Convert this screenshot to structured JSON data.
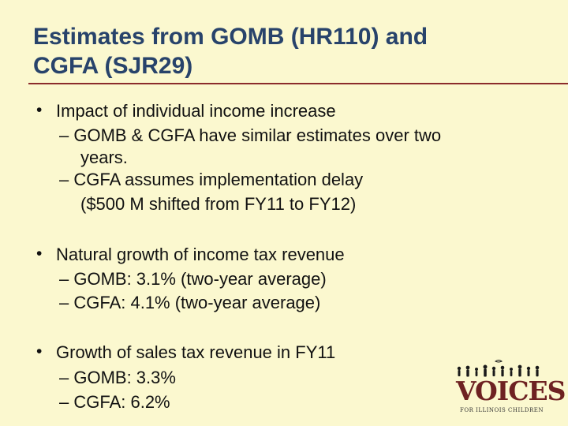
{
  "slide": {
    "title_line1": "Estimates from GOMB (HR110) and",
    "title_line2": "CGFA (SJR29)",
    "bullets": [
      {
        "text": "Impact of individual income increase",
        "subs": [
          "– GOMB & CGFA have similar estimates over two",
          "years.",
          "– CGFA assumes implementation delay",
          "($500 M shifted from FY11 to FY12)"
        ]
      },
      {
        "text": "Natural growth of income tax revenue",
        "subs": [
          "– GOMB:  3.1% (two-year average)",
          "– CGFA:   4.1% (two-year average)"
        ]
      },
      {
        "text": "Growth of sales tax revenue in FY11",
        "subs": [
          "– GOMB:  3.3%",
          "– CGFA:   6.2%"
        ]
      }
    ],
    "bullet_symbol": "•"
  },
  "logo": {
    "word": "VOICES",
    "tagline": "FOR ILLINOIS CHILDREN",
    "color": "#6e2222",
    "icon": "children-silhouettes-icon"
  },
  "colors": {
    "background": "#fbf8cf",
    "title": "#28436b",
    "rule": "#8b2c2c"
  }
}
